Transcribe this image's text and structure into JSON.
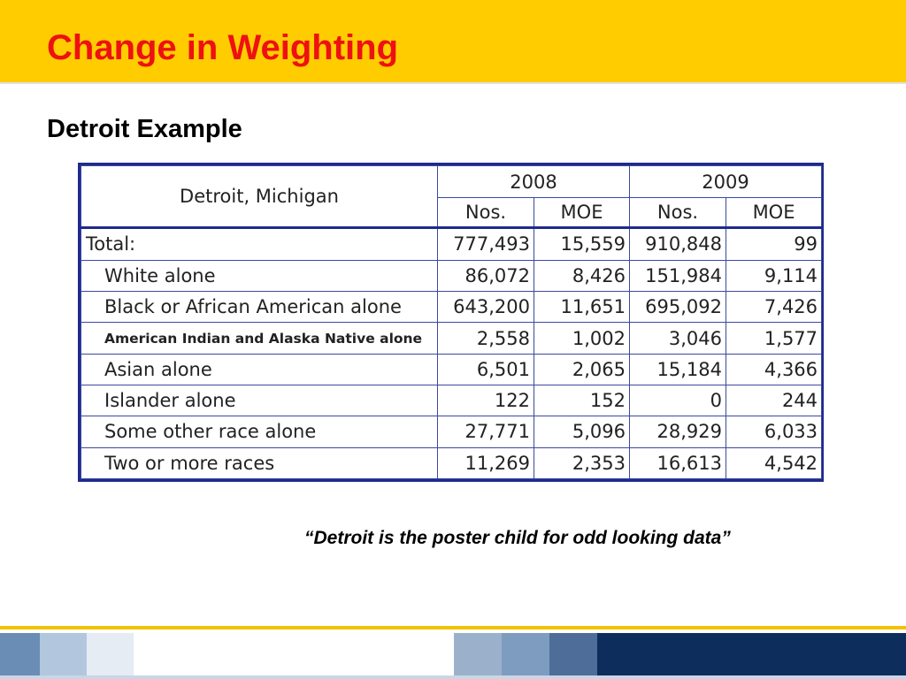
{
  "slide": {
    "title": "Change in Weighting",
    "subtitle": "Detroit Example",
    "quote": "“Detroit is the poster child for odd looking data”"
  },
  "table": {
    "corner_label": "Detroit, Michigan",
    "years": [
      "2008",
      "2009"
    ],
    "subheaders": [
      "Nos.",
      "MOE",
      "Nos.",
      "MOE"
    ],
    "rows": [
      {
        "label": "Total:",
        "cells": [
          "777,493",
          "15,559",
          "910,848",
          "99"
        ]
      },
      {
        "label": "White alone",
        "cells": [
          "86,072",
          "8,426",
          "151,984",
          "9,114"
        ]
      },
      {
        "label": "Black or African American alone",
        "cells": [
          "643,200",
          "11,651",
          "695,092",
          "7,426"
        ]
      },
      {
        "label": "American Indian and Alaska Native alone",
        "cells": [
          "2,558",
          "1,002",
          "3,046",
          "1,577"
        ]
      },
      {
        "label": "Asian alone",
        "cells": [
          "6,501",
          "2,065",
          "15,184",
          "4,366"
        ]
      },
      {
        "label": "Islander alone",
        "cells": [
          "122",
          "152",
          "0",
          "244"
        ]
      },
      {
        "label": "Some other race alone",
        "cells": [
          "27,771",
          "5,096",
          "28,929",
          "6,033"
        ]
      },
      {
        "label": "Two or more races",
        "cells": [
          "11,269",
          "2,353",
          "16,613",
          "4,542"
        ]
      }
    ]
  },
  "colors": {
    "title_bar": "#FFCC00",
    "title_text": "#EE1111",
    "table_border": "#1F2A8C",
    "footer_strip": [
      "#6A8DB5",
      "#B2C7DD",
      "#E5ECF4",
      "#FFFFFF",
      "#9BB1CB",
      "#7E9CC0",
      "#4E6E99",
      "#0D2E5C"
    ]
  }
}
